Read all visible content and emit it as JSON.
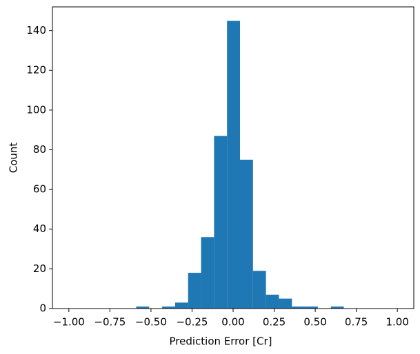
{
  "chart_data": {
    "type": "histogram",
    "xlabel": "Prediction Error [Cr]",
    "ylabel": "Count",
    "bins": [
      -0.59,
      -0.511,
      -0.432,
      -0.353,
      -0.274,
      -0.195,
      -0.116,
      -0.037,
      0.042,
      0.121,
      0.2,
      0.279,
      0.358,
      0.437,
      0.516,
      0.595,
      0.674
    ],
    "values": [
      1,
      0,
      1,
      3,
      18,
      36,
      87,
      145,
      75,
      19,
      7,
      5,
      1,
      1,
      0,
      1
    ],
    "color": "#1f77b4",
    "xlim": [
      -1.1,
      1.1
    ],
    "xticks": [
      {
        "value": -1,
        "label": "−1.00"
      },
      {
        "value": -0.75,
        "label": "−0.75"
      },
      {
        "value": -0.5,
        "label": "−0.50"
      },
      {
        "value": -0.25,
        "label": "−0.25"
      },
      {
        "value": 0,
        "label": "0.00"
      },
      {
        "value": 0.25,
        "label": "0.25"
      },
      {
        "value": 0.5,
        "label": "0.50"
      },
      {
        "value": 0.75,
        "label": "0.75"
      },
      {
        "value": 1,
        "label": "1.00"
      }
    ],
    "ylim": [
      0,
      152
    ],
    "yticks": [
      0,
      20,
      40,
      60,
      80,
      100,
      120,
      140
    ]
  }
}
